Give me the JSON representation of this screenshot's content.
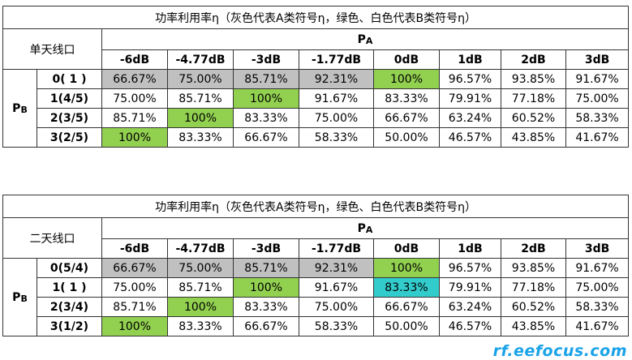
{
  "table1": {
    "title": "功率利用率η（灰色代表A类符号η，绿色、白色代表B类符号η）",
    "antenna_label": "单天线口",
    "pa_main": "P",
    "pa_sub": "A",
    "pb_main": "P",
    "pb_sub": "B",
    "columns": [
      "-6dB",
      "-4.77dB",
      "-3dB",
      "-1.77dB",
      "0dB",
      "1dB",
      "2dB",
      "3dB"
    ],
    "rows": [
      {
        "label": "0(  1  )",
        "cells": [
          "66.67%",
          "75.00%",
          "85.71%",
          "92.31%",
          "100%",
          "96.57%",
          "93.85%",
          "91.67%"
        ],
        "colors": [
          "gray",
          "gray",
          "gray",
          "gray",
          "green",
          "",
          "",
          ""
        ]
      },
      {
        "label": "1(4/5)",
        "cells": [
          "75.00%",
          "85.71%",
          "100%",
          "91.67%",
          "83.33%",
          "79.91%",
          "77.18%",
          "75.00%"
        ],
        "colors": [
          "",
          "",
          "green",
          "",
          "",
          "",
          "",
          ""
        ]
      },
      {
        "label": "2(3/5)",
        "cells": [
          "85.71%",
          "100%",
          "83.33%",
          "75.00%",
          "66.67%",
          "63.24%",
          "60.52%",
          "58.33%"
        ],
        "colors": [
          "",
          "green",
          "",
          "",
          "",
          "",
          "",
          ""
        ]
      },
      {
        "label": "3(2/5)",
        "cells": [
          "100%",
          "83.33%",
          "66.67%",
          "58.33%",
          "50.00%",
          "46.57%",
          "43.85%",
          "41.67%"
        ],
        "colors": [
          "green",
          "",
          "",
          "",
          "",
          "",
          "",
          ""
        ]
      }
    ]
  },
  "table2": {
    "title": "功率利用率η（灰色代表A类符号η，绿色、白色代表B类符号η）",
    "antenna_label": "二天线口",
    "pa_main": "P",
    "pa_sub": "A",
    "pb_main": "P",
    "pb_sub": "B",
    "columns": [
      "-6dB",
      "-4.77dB",
      "-3dB",
      "-1.77dB",
      "0dB",
      "1dB",
      "2dB",
      "3dB"
    ],
    "rows": [
      {
        "label": "0(5/4)",
        "cells": [
          "66.67%",
          "75.00%",
          "85.71%",
          "92.31%",
          "100%",
          "96.57%",
          "93.85%",
          "91.67%"
        ],
        "colors": [
          "gray",
          "gray",
          "gray",
          "gray",
          "green",
          "",
          "",
          ""
        ]
      },
      {
        "label": "1(  1  )",
        "cells": [
          "75.00%",
          "85.71%",
          "100%",
          "91.67%",
          "83.33%",
          "79.91%",
          "77.18%",
          "75.00%"
        ],
        "colors": [
          "",
          "",
          "green",
          "",
          "teal",
          "",
          "",
          ""
        ]
      },
      {
        "label": "2(3/4)",
        "cells": [
          "85.71%",
          "100%",
          "83.33%",
          "75.00%",
          "66.67%",
          "63.24%",
          "60.52%",
          "58.33%"
        ],
        "colors": [
          "",
          "green",
          "",
          "",
          "",
          "",
          "",
          ""
        ]
      },
      {
        "label": "3(1/2)",
        "cells": [
          "100%",
          "83.33%",
          "66.67%",
          "58.33%",
          "50.00%",
          "46.57%",
          "43.85%",
          "41.67%"
        ],
        "colors": [
          "green",
          "",
          "",
          "",
          "",
          "",
          "",
          ""
        ]
      }
    ]
  },
  "colors": {
    "gray": "#c0c0c0",
    "green": "#92d050",
    "teal": "#33cccc"
  },
  "watermark": "rf.eefocus.com"
}
